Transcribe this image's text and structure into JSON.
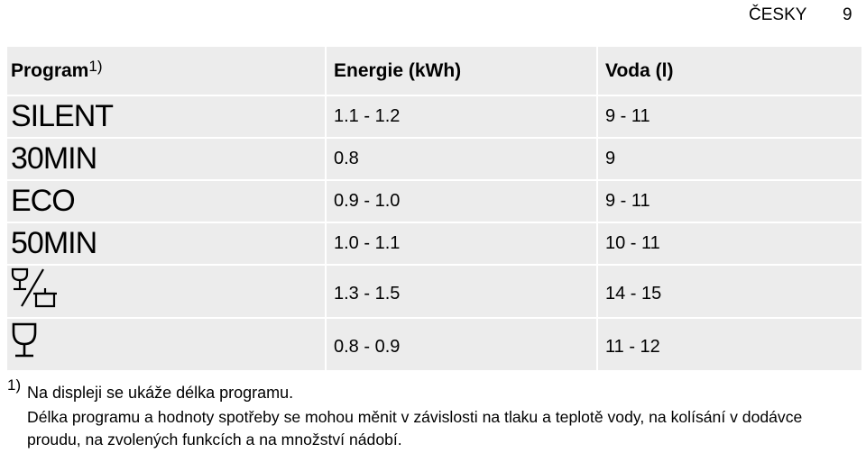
{
  "page_header": {
    "section": "ČESKY",
    "page_number": "9"
  },
  "table": {
    "header": {
      "program": "Program",
      "program_note": "1)",
      "energy": "Energie (kWh)",
      "water": "Voda (l)"
    },
    "rows": [
      {
        "program": "SILENT",
        "energy": "1.1 - 1.2",
        "water": "9 - 11"
      },
      {
        "program": "30MIN",
        "energy": "0.8",
        "water": "9"
      },
      {
        "program": "ECO",
        "energy": "0.9 - 1.0",
        "water": "9 - 11"
      },
      {
        "program": "50MIN",
        "energy": "1.0 - 1.1",
        "water": "10 - 11"
      },
      {
        "energy": "1.3 - 1.5",
        "water": "14 - 15"
      },
      {
        "energy": "0.8 - 0.9",
        "water": "11 - 12"
      }
    ]
  },
  "footnote": {
    "marker": "1)",
    "line": "Na displeji se ukáže délka programu.",
    "text": "Délka programu a hodnoty spotřeby se mohou měnit v závislosti na tlaku a teplotě vody, na kolísání v dodávce proudu, na zvolených funkcích a na množství nádobí."
  }
}
